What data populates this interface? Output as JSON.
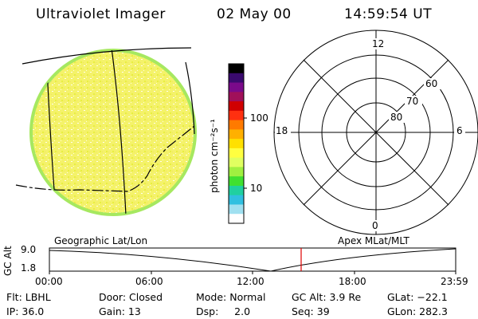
{
  "header": {
    "title": "Ultraviolet Imager",
    "date": "02 May 00",
    "time": "14:59:54 UT"
  },
  "colorbar": {
    "label": "photon cm⁻²s⁻¹",
    "ticks": [
      "100",
      "10"
    ],
    "tick_values": [
      100,
      10
    ],
    "colors": [
      "#000000",
      "#3a0a6e",
      "#7a0a8a",
      "#a0105a",
      "#d00000",
      "#ff3010",
      "#ff7a00",
      "#ffb000",
      "#ffe000",
      "#ffff40",
      "#e0ff60",
      "#a0f040",
      "#40e030",
      "#20d0a0",
      "#30c0e0",
      "#a0e0f0",
      "#ffffff"
    ]
  },
  "polar": {
    "label_top": "12",
    "label_bottom": "0",
    "label_left": "18",
    "label_right": "6",
    "ring_labels": [
      "60",
      "70",
      "80"
    ]
  },
  "timeline": {
    "left_caption": "Geographic Lat/Lon",
    "right_caption": "Apex MLat/MLT",
    "axis_title": "GC Alt",
    "y_ticks": [
      "9.0",
      "1.8"
    ],
    "x_ticks": [
      "00:00",
      "06:00",
      "12:00",
      "18:00",
      "23:59"
    ],
    "marker_color": "#e00000"
  },
  "footer": {
    "row1": {
      "filter": "Flt: LBHL",
      "door": "Door: Closed",
      "mode": "Mode: Normal",
      "gc_alt": "GC Alt: 3.9 Re",
      "glat": "GLat: −22.1"
    },
    "row2": {
      "ip": "IP: 36.0",
      "gain": "Gain: 13",
      "dsp": "Dsp:     2.0",
      "seq": "Seq: 39",
      "glon": "GLon: 282.3"
    }
  }
}
